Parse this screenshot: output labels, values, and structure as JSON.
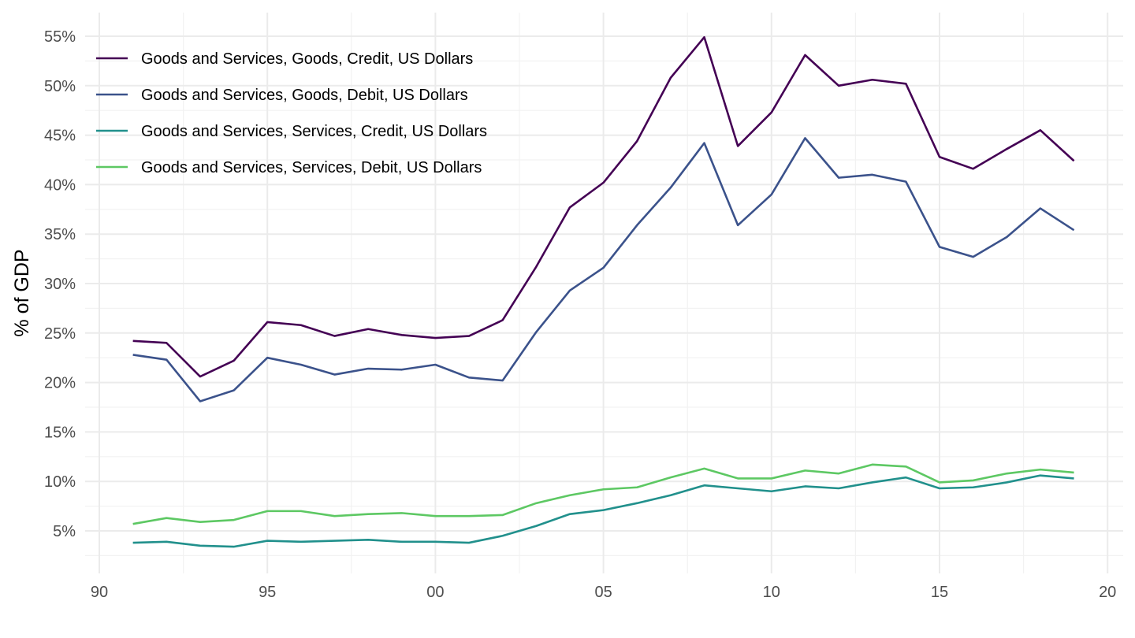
{
  "chart_data": {
    "type": "line",
    "title": "",
    "xlabel": "",
    "ylabel": "% of GDP",
    "xlim": [
      1990,
      2020
    ],
    "ylim": [
      2,
      57
    ],
    "x_ticks": [
      {
        "value": 1990,
        "label": "90"
      },
      {
        "value": 1995,
        "label": "95"
      },
      {
        "value": 2000,
        "label": "00"
      },
      {
        "value": 2005,
        "label": "05"
      },
      {
        "value": 2010,
        "label": "10"
      },
      {
        "value": 2015,
        "label": "15"
      },
      {
        "value": 2020,
        "label": "20"
      }
    ],
    "y_ticks": [
      {
        "value": 5,
        "label": "5%"
      },
      {
        "value": 10,
        "label": "10%"
      },
      {
        "value": 15,
        "label": "15%"
      },
      {
        "value": 20,
        "label": "20%"
      },
      {
        "value": 25,
        "label": "25%"
      },
      {
        "value": 30,
        "label": "30%"
      },
      {
        "value": 35,
        "label": "35%"
      },
      {
        "value": 40,
        "label": "40%"
      },
      {
        "value": 45,
        "label": "45%"
      },
      {
        "value": 50,
        "label": "50%"
      },
      {
        "value": 55,
        "label": "55%"
      }
    ],
    "grid": true,
    "legend_position": "top-left",
    "x": [
      1991,
      1992,
      1993,
      1994,
      1995,
      1996,
      1997,
      1998,
      1999,
      2000,
      2001,
      2002,
      2003,
      2004,
      2005,
      2006,
      2007,
      2008,
      2009,
      2010,
      2011,
      2012,
      2013,
      2014,
      2015,
      2016,
      2017,
      2018,
      2019
    ],
    "series": [
      {
        "name": "Goods and Services, Goods, Credit, US Dollars",
        "color": "#440154",
        "values": [
          24.2,
          24.0,
          20.6,
          22.2,
          26.1,
          25.8,
          24.7,
          25.4,
          24.8,
          24.5,
          24.7,
          26.3,
          31.7,
          37.7,
          40.2,
          44.4,
          50.8,
          54.9,
          43.9,
          47.3,
          53.1,
          50.0,
          50.6,
          50.2,
          42.8,
          41.6,
          43.6,
          45.5,
          42.4
        ]
      },
      {
        "name": "Goods and Services, Goods, Debit, US Dollars",
        "color": "#3b528b",
        "values": [
          22.8,
          22.3,
          18.1,
          19.2,
          22.5,
          21.8,
          20.8,
          21.4,
          21.3,
          21.8,
          20.5,
          20.2,
          25.1,
          29.3,
          31.6,
          35.9,
          39.7,
          44.2,
          35.9,
          39.0,
          44.7,
          40.7,
          41.0,
          40.3,
          33.7,
          32.7,
          34.7,
          37.6,
          35.4
        ]
      },
      {
        "name": "Goods and Services, Services, Credit, US Dollars",
        "color": "#21908c",
        "values": [
          3.8,
          3.9,
          3.5,
          3.4,
          4.0,
          3.9,
          4.0,
          4.1,
          3.9,
          3.9,
          3.8,
          4.5,
          5.5,
          6.7,
          7.1,
          7.8,
          8.6,
          9.6,
          9.3,
          9.0,
          9.5,
          9.3,
          9.9,
          10.4,
          9.3,
          9.4,
          9.9,
          10.6,
          10.3
        ]
      },
      {
        "name": "Goods and Services, Services, Debit, US Dollars",
        "color": "#5dc863",
        "values": [
          5.7,
          6.3,
          5.9,
          6.1,
          7.0,
          7.0,
          6.5,
          6.7,
          6.8,
          6.5,
          6.5,
          6.6,
          7.8,
          8.6,
          9.2,
          9.4,
          10.4,
          11.3,
          10.3,
          10.3,
          11.1,
          10.8,
          11.7,
          11.5,
          9.9,
          10.1,
          10.8,
          11.2,
          10.9
        ]
      }
    ]
  }
}
